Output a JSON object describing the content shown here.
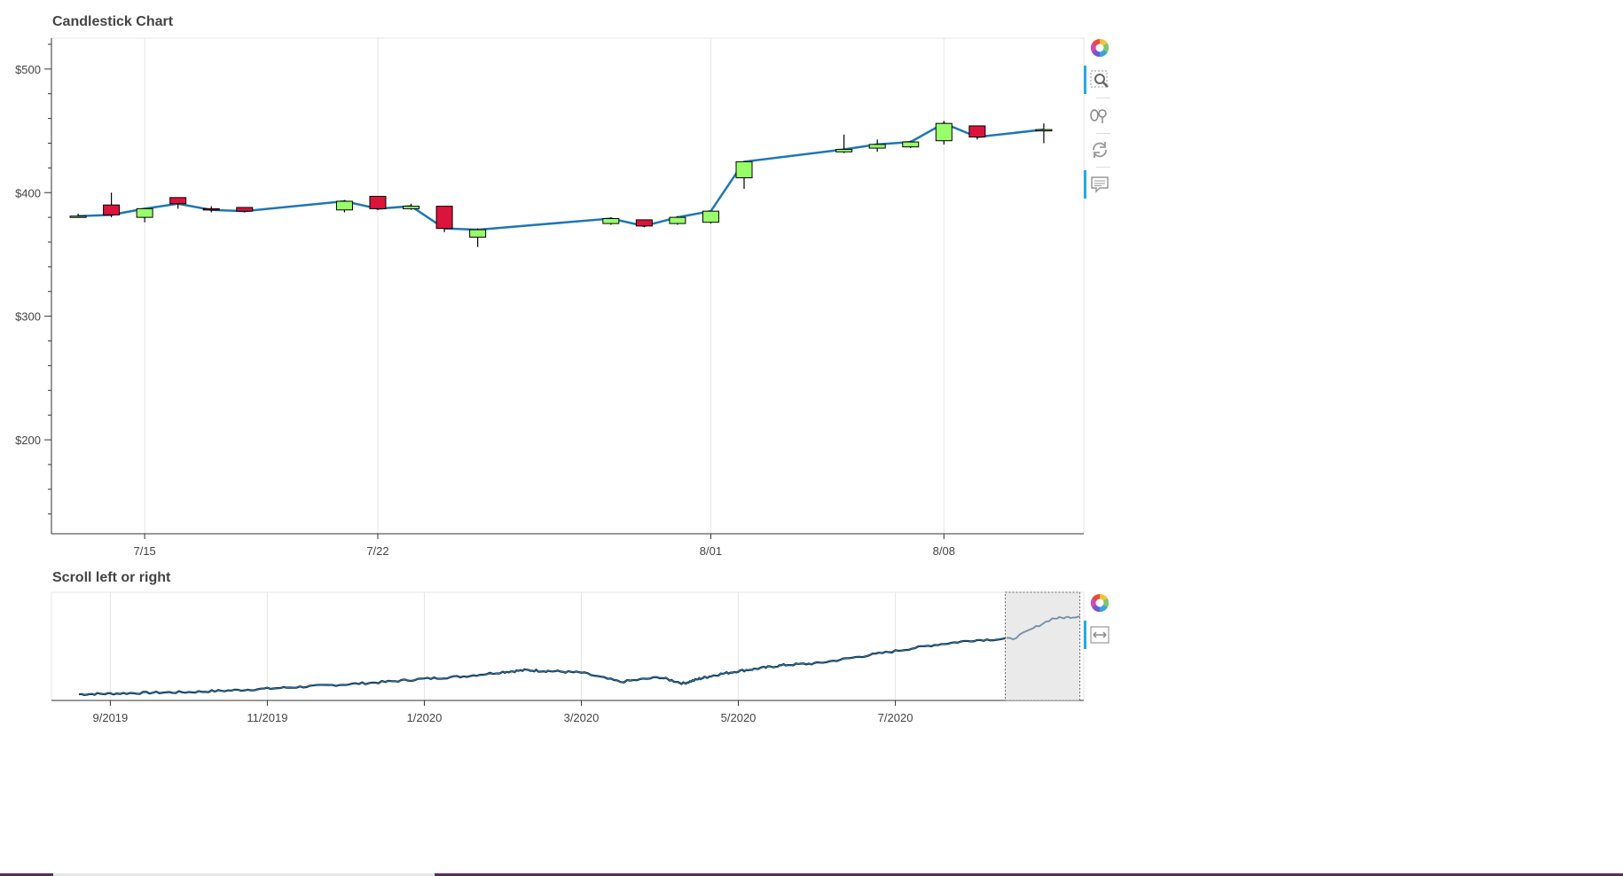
{
  "main_chart": {
    "title": "Candlestick Chart",
    "colors": {
      "increasing": "#98ff6a",
      "decreasing": "#dc143c",
      "close_line": "#1f77b4",
      "outline": "#000000",
      "grid": "#e5e5e5"
    }
  },
  "range_chart": {
    "title": "Scroll left or right",
    "colors": {
      "line": "#1f77b4",
      "range_fill": "#e6e6e6"
    }
  },
  "toolbar_main": [
    {
      "name": "bokeh-logo-icon",
      "active": false
    },
    {
      "name": "box-zoom-icon",
      "active": true
    },
    {
      "name": "wheel-zoom-icon",
      "active": false
    },
    {
      "name": "reset-icon",
      "active": false
    },
    {
      "name": "hover-icon",
      "active": true
    }
  ],
  "toolbar_range": [
    {
      "name": "bokeh-logo-icon",
      "active": false
    },
    {
      "name": "range-tool-icon",
      "active": true
    }
  ],
  "chart_data": [
    {
      "type": "candlestick",
      "title": "Candlestick Chart",
      "x_ticks": [
        {
          "label": "7/15",
          "day": 15
        },
        {
          "label": "7/22",
          "day": 22
        },
        {
          "label": "8/01",
          "day": 32
        },
        {
          "label": "8/08",
          "day": 39
        }
      ],
      "y_ticks": [
        {
          "label": "$500",
          "value": 500
        },
        {
          "label": "$400",
          "value": 400
        },
        {
          "label": "$300",
          "value": 300
        },
        {
          "label": "$200",
          "value": 200
        }
      ],
      "x_range_days": [
        12.2,
        43.2
      ],
      "ylim": [
        124,
        525
      ],
      "series": [
        {
          "date": "7/13",
          "open": 381,
          "high": 383,
          "low": 381,
          "close": 381
        },
        {
          "date": "7/14",
          "open": 390,
          "high": 400,
          "low": 380,
          "close": 382
        },
        {
          "date": "7/15",
          "open": 380,
          "high": 386,
          "low": 376,
          "close": 387
        },
        {
          "date": "7/16",
          "open": 396,
          "high": 396,
          "low": 387,
          "close": 391
        },
        {
          "date": "7/17",
          "open": 387,
          "high": 389,
          "low": 384,
          "close": 386
        },
        {
          "date": "7/18",
          "open": 388,
          "high": 388,
          "low": 384,
          "close": 385
        },
        {
          "date": "7/21",
          "open": 386,
          "high": 394,
          "low": 384,
          "close": 393
        },
        {
          "date": "7/22",
          "open": 397,
          "high": 397,
          "low": 386,
          "close": 387
        },
        {
          "date": "7/23",
          "open": 387,
          "high": 391,
          "low": 386,
          "close": 389
        },
        {
          "date": "7/24",
          "open": 389,
          "high": 389,
          "low": 368,
          "close": 371
        },
        {
          "date": "7/25",
          "open": 364,
          "high": 371,
          "low": 356,
          "close": 370
        },
        {
          "date": "7/29",
          "open": 375,
          "high": 380,
          "low": 374,
          "close": 379
        },
        {
          "date": "7/30",
          "open": 378,
          "high": 378,
          "low": 372,
          "close": 373
        },
        {
          "date": "7/31",
          "open": 375,
          "high": 381,
          "low": 374,
          "close": 380
        },
        {
          "date": "8/01",
          "open": 376,
          "high": 385,
          "low": 375,
          "close": 385
        },
        {
          "date": "8/02",
          "open": 412,
          "high": 425,
          "low": 403,
          "close": 425
        },
        {
          "date": "8/05",
          "open": 433,
          "high": 447,
          "low": 432,
          "close": 435
        },
        {
          "date": "8/06",
          "open": 436,
          "high": 443,
          "low": 433,
          "close": 439
        },
        {
          "date": "8/07",
          "open": 437,
          "high": 442,
          "low": 436,
          "close": 441
        },
        {
          "date": "8/08",
          "open": 442,
          "high": 458,
          "low": 439,
          "close": 456
        },
        {
          "date": "8/09",
          "open": 454,
          "high": 454,
          "low": 443,
          "close": 445
        },
        {
          "date": "8/11",
          "open": 451,
          "high": 456,
          "low": 440,
          "close": 451
        }
      ]
    },
    {
      "type": "line",
      "title": "Scroll left or right",
      "x_ticks": [
        "9/2019",
        "11/2019",
        "1/2020",
        "3/2020",
        "5/2020",
        "7/2020"
      ],
      "x_range_months": [
        7.25,
        20.4
      ],
      "ylim": [
        180,
        530
      ],
      "selected_range": [
        "7/13/2020",
        "8/11/2020"
      ],
      "series": [
        {
          "name": "",
          "x_month": [
            7.6,
            8.0,
            8.5,
            9.0,
            9.5,
            10.0,
            10.5,
            11.0,
            11.5,
            12.0,
            12.5,
            13.0,
            13.3,
            13.6,
            14.0,
            14.5,
            15.0,
            15.3,
            15.5,
            15.7,
            16.0,
            16.3,
            16.6,
            17.0,
            17.5,
            18.0,
            18.5,
            19.0,
            19.5,
            20.0,
            20.35
          ],
          "close": [
            200,
            202,
            205,
            207,
            212,
            218,
            225,
            232,
            240,
            250,
            258,
            272,
            278,
            275,
            270,
            240,
            255,
            235,
            250,
            262,
            275,
            285,
            295,
            300,
            320,
            340,
            360,
            375,
            380,
            445,
            452
          ]
        }
      ]
    }
  ]
}
